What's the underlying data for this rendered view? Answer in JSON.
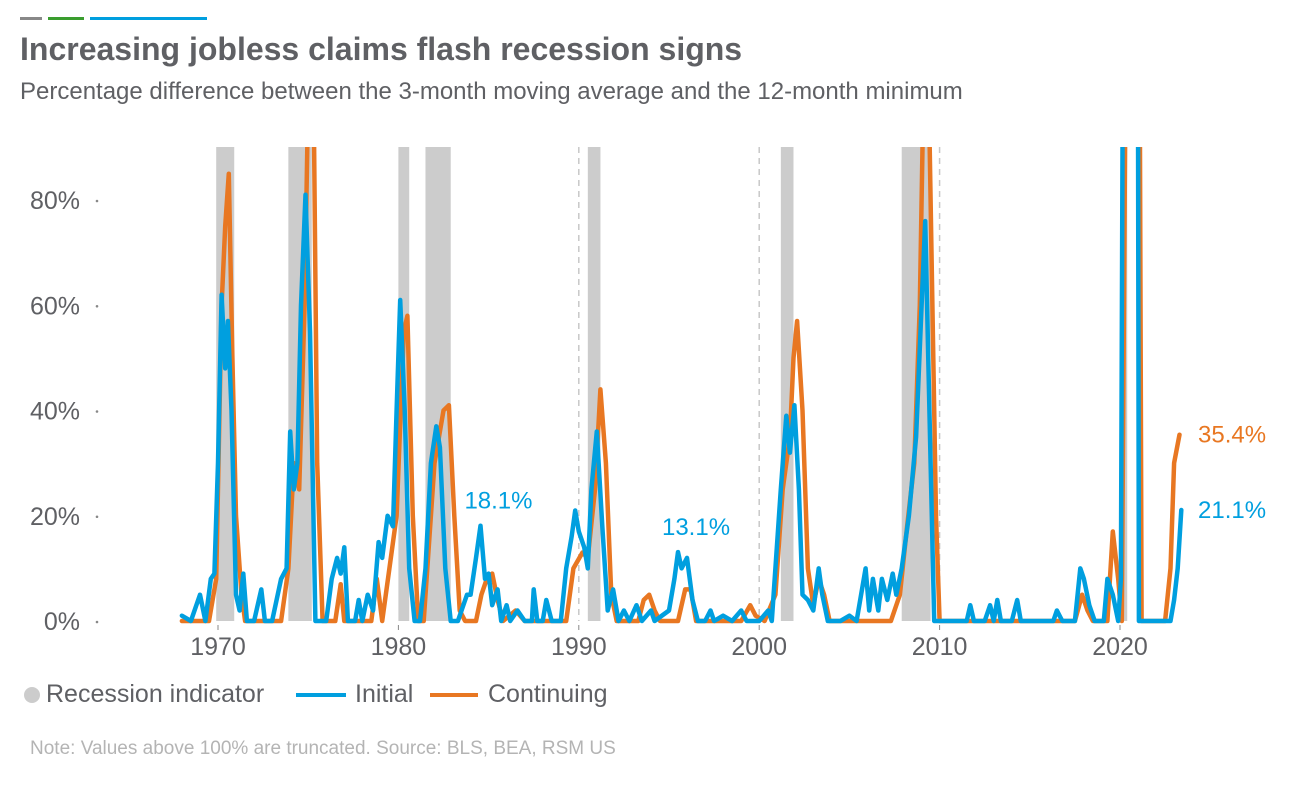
{
  "header": {
    "title": "Increasing jobless claims flash recession signs",
    "subtitle": "Percentage difference between the 3-month moving average and the 12-month minimum",
    "accent_bars": [
      "#888888",
      "#3a9d2f",
      "#009fdf"
    ]
  },
  "legend": {
    "recession": "Recession indicator",
    "initial": "Initial",
    "continuing": "Continuing"
  },
  "note": "Note: Values above 100% are truncated. Source: BLS, BEA, RSM US",
  "chart_data": {
    "type": "line",
    "xlabel": "",
    "ylabel": "",
    "x_ticks": [
      "1970",
      "1980",
      "1990",
      "2000",
      "2010",
      "2020"
    ],
    "y_ticks": [
      "0%",
      "20%",
      "40%",
      "60%",
      "80%"
    ],
    "xlim": [
      1968,
      2024
    ],
    "ylim": [
      0,
      90
    ],
    "grid": false,
    "legend_position": "bottom-left",
    "colors": {
      "recession": "#cccccc",
      "initial": "#009fdf",
      "continuing": "#e87722"
    },
    "recessions": [
      [
        1969.9,
        1970.9
      ],
      [
        1973.9,
        1975.2
      ],
      [
        1980.0,
        1980.6
      ],
      [
        1981.5,
        1982.9
      ],
      [
        1990.5,
        1991.2
      ],
      [
        2001.2,
        2001.9
      ],
      [
        2007.9,
        2009.5
      ],
      [
        2020.1,
        2020.4
      ]
    ],
    "series": [
      {
        "name": "Continuing",
        "points": [
          [
            1968,
            0
          ],
          [
            1969.5,
            0
          ],
          [
            1969.9,
            8
          ],
          [
            1970.2,
            60
          ],
          [
            1970.4,
            75
          ],
          [
            1970.6,
            85
          ],
          [
            1970.8,
            50
          ],
          [
            1971.0,
            20
          ],
          [
            1971.3,
            5
          ],
          [
            1971.5,
            0
          ],
          [
            1973.5,
            0
          ],
          [
            1973.9,
            10
          ],
          [
            1974.2,
            30
          ],
          [
            1974.5,
            25
          ],
          [
            1974.8,
            60
          ],
          [
            1975.0,
            100
          ],
          [
            1975.3,
            100
          ],
          [
            1975.5,
            30
          ],
          [
            1975.8,
            0
          ],
          [
            1976.5,
            0
          ],
          [
            1976.8,
            7
          ],
          [
            1977.0,
            0
          ],
          [
            1978.5,
            0
          ],
          [
            1978.8,
            8
          ],
          [
            1979.1,
            0
          ],
          [
            1979.5,
            10
          ],
          [
            1979.9,
            20
          ],
          [
            1980.3,
            55
          ],
          [
            1980.5,
            58
          ],
          [
            1980.8,
            20
          ],
          [
            1981.1,
            0
          ],
          [
            1981.4,
            0
          ],
          [
            1981.7,
            15
          ],
          [
            1982.0,
            30
          ],
          [
            1982.5,
            40
          ],
          [
            1982.8,
            41
          ],
          [
            1983.1,
            20
          ],
          [
            1983.4,
            2
          ],
          [
            1983.7,
            0
          ],
          [
            1984.3,
            0
          ],
          [
            1984.6,
            5
          ],
          [
            1984.9,
            8
          ],
          [
            1985.2,
            9
          ],
          [
            1985.5,
            4
          ],
          [
            1985.8,
            0
          ],
          [
            1986.5,
            2
          ],
          [
            1987,
            0
          ],
          [
            1989.3,
            0
          ],
          [
            1989.7,
            10
          ],
          [
            1990.2,
            13
          ],
          [
            1990.5,
            12
          ],
          [
            1990.9,
            25
          ],
          [
            1991.2,
            44
          ],
          [
            1991.5,
            30
          ],
          [
            1991.8,
            5
          ],
          [
            1992.1,
            0
          ],
          [
            1993.3,
            0
          ],
          [
            1993.6,
            4
          ],
          [
            1993.9,
            5
          ],
          [
            1994.2,
            2
          ],
          [
            1994.5,
            0
          ],
          [
            1995.5,
            0
          ],
          [
            1995.9,
            6
          ],
          [
            1996.2,
            6
          ],
          [
            1996.5,
            0
          ],
          [
            1999,
            0
          ],
          [
            1999.5,
            3
          ],
          [
            1999.8,
            1
          ],
          [
            2000.3,
            0
          ],
          [
            2000.9,
            5
          ],
          [
            2001.3,
            25
          ],
          [
            2001.7,
            35
          ],
          [
            2001.9,
            50
          ],
          [
            2002.1,
            57
          ],
          [
            2002.4,
            40
          ],
          [
            2002.7,
            10
          ],
          [
            2003.0,
            3
          ],
          [
            2003.3,
            8
          ],
          [
            2003.6,
            5
          ],
          [
            2003.9,
            0
          ],
          [
            2007.3,
            0
          ],
          [
            2007.8,
            5
          ],
          [
            2008.2,
            18
          ],
          [
            2008.6,
            30
          ],
          [
            2008.9,
            60
          ],
          [
            2009.1,
            100
          ],
          [
            2009.4,
            100
          ],
          [
            2009.8,
            20
          ],
          [
            2010.0,
            0
          ],
          [
            2017.5,
            0
          ],
          [
            2017.9,
            5
          ],
          [
            2018.2,
            2
          ],
          [
            2018.5,
            0
          ],
          [
            2019.3,
            0
          ],
          [
            2019.6,
            17
          ],
          [
            2019.9,
            8
          ],
          [
            2020.1,
            0
          ],
          [
            2020.3,
            100
          ],
          [
            2021.1,
            100
          ],
          [
            2021.2,
            0
          ],
          [
            2022.5,
            0
          ],
          [
            2022.8,
            10
          ],
          [
            2023.0,
            30
          ],
          [
            2023.3,
            35.4
          ]
        ]
      },
      {
        "name": "Initial",
        "points": [
          [
            1968.0,
            1
          ],
          [
            1968.5,
            0
          ],
          [
            1969.0,
            5
          ],
          [
            1969.3,
            0
          ],
          [
            1969.6,
            8
          ],
          [
            1969.8,
            9
          ],
          [
            1970.0,
            30
          ],
          [
            1970.2,
            62
          ],
          [
            1970.4,
            48
          ],
          [
            1970.55,
            57
          ],
          [
            1970.75,
            40
          ],
          [
            1971.0,
            5
          ],
          [
            1971.2,
            2
          ],
          [
            1971.4,
            9
          ],
          [
            1971.6,
            0
          ],
          [
            1972.0,
            0
          ],
          [
            1972.4,
            6
          ],
          [
            1972.6,
            0
          ],
          [
            1973.0,
            0
          ],
          [
            1973.5,
            8
          ],
          [
            1973.8,
            10
          ],
          [
            1974.0,
            36
          ],
          [
            1974.2,
            25
          ],
          [
            1974.4,
            30
          ],
          [
            1974.6,
            60
          ],
          [
            1974.85,
            81
          ],
          [
            1975.1,
            55
          ],
          [
            1975.4,
            0
          ],
          [
            1976.0,
            0
          ],
          [
            1976.3,
            8
          ],
          [
            1976.6,
            12
          ],
          [
            1976.8,
            9
          ],
          [
            1977.0,
            14
          ],
          [
            1977.2,
            0
          ],
          [
            1977.6,
            0
          ],
          [
            1977.8,
            4
          ],
          [
            1978.0,
            0
          ],
          [
            1978.3,
            5
          ],
          [
            1978.6,
            2
          ],
          [
            1978.9,
            15
          ],
          [
            1979.1,
            12
          ],
          [
            1979.4,
            20
          ],
          [
            1979.7,
            18
          ],
          [
            1979.9,
            40
          ],
          [
            1980.1,
            61
          ],
          [
            1980.35,
            40
          ],
          [
            1980.6,
            10
          ],
          [
            1980.9,
            0
          ],
          [
            1981.2,
            0
          ],
          [
            1981.5,
            10
          ],
          [
            1981.8,
            30
          ],
          [
            1982.1,
            37
          ],
          [
            1982.3,
            33
          ],
          [
            1982.6,
            10
          ],
          [
            1982.9,
            0
          ],
          [
            1983.3,
            0
          ],
          [
            1983.8,
            5
          ],
          [
            1984.0,
            5
          ],
          [
            1984.3,
            12
          ],
          [
            1984.55,
            18.1
          ],
          [
            1984.8,
            8
          ],
          [
            1985.0,
            9
          ],
          [
            1985.2,
            3
          ],
          [
            1985.5,
            6
          ],
          [
            1985.7,
            0
          ],
          [
            1986.0,
            3
          ],
          [
            1986.2,
            0
          ],
          [
            1986.6,
            2
          ],
          [
            1987.0,
            0
          ],
          [
            1987.4,
            0
          ],
          [
            1987.5,
            6
          ],
          [
            1987.7,
            0
          ],
          [
            1988.0,
            0
          ],
          [
            1988.2,
            4
          ],
          [
            1988.5,
            0
          ],
          [
            1989.0,
            0
          ],
          [
            1989.3,
            10
          ],
          [
            1989.6,
            16
          ],
          [
            1989.8,
            21
          ],
          [
            1990.0,
            17
          ],
          [
            1990.3,
            14
          ],
          [
            1990.5,
            10
          ],
          [
            1990.7,
            25
          ],
          [
            1991.0,
            36
          ],
          [
            1991.3,
            18
          ],
          [
            1991.6,
            2
          ],
          [
            1991.9,
            6
          ],
          [
            1992.2,
            0
          ],
          [
            1992.5,
            2
          ],
          [
            1992.8,
            0
          ],
          [
            1993.2,
            3
          ],
          [
            1993.5,
            0
          ],
          [
            1994.0,
            2
          ],
          [
            1994.2,
            0
          ],
          [
            1995.0,
            2
          ],
          [
            1995.3,
            8
          ],
          [
            1995.5,
            13.1
          ],
          [
            1995.7,
            10
          ],
          [
            1996.0,
            12
          ],
          [
            1996.3,
            4
          ],
          [
            1996.6,
            0
          ],
          [
            1997,
            0
          ],
          [
            1997.3,
            2
          ],
          [
            1997.5,
            0
          ],
          [
            1998,
            1
          ],
          [
            1998.5,
            0
          ],
          [
            1999,
            2
          ],
          [
            1999.3,
            0
          ],
          [
            2000,
            0
          ],
          [
            2000.5,
            2
          ],
          [
            2000.7,
            0
          ],
          [
            2000.9,
            10
          ],
          [
            2001.2,
            25
          ],
          [
            2001.5,
            39
          ],
          [
            2001.7,
            32
          ],
          [
            2001.95,
            41
          ],
          [
            2002.2,
            25
          ],
          [
            2002.4,
            5
          ],
          [
            2002.7,
            4
          ],
          [
            2003.0,
            2
          ],
          [
            2003.3,
            10
          ],
          [
            2003.5,
            5
          ],
          [
            2003.8,
            0
          ],
          [
            2004.5,
            0
          ],
          [
            2005,
            1
          ],
          [
            2005.4,
            0
          ],
          [
            2005.9,
            10
          ],
          [
            2006.1,
            2
          ],
          [
            2006.3,
            8
          ],
          [
            2006.6,
            2
          ],
          [
            2006.8,
            8
          ],
          [
            2007.1,
            4
          ],
          [
            2007.4,
            9
          ],
          [
            2007.6,
            5
          ],
          [
            2007.9,
            10
          ],
          [
            2008.3,
            20
          ],
          [
            2008.7,
            35
          ],
          [
            2009.0,
            60
          ],
          [
            2009.2,
            76
          ],
          [
            2009.5,
            30
          ],
          [
            2009.7,
            0
          ],
          [
            2011.5,
            0
          ],
          [
            2011.7,
            3
          ],
          [
            2011.9,
            0
          ],
          [
            2012.5,
            0
          ],
          [
            2012.8,
            3
          ],
          [
            2013.0,
            0
          ],
          [
            2013.2,
            4
          ],
          [
            2013.4,
            0
          ],
          [
            2014,
            0
          ],
          [
            2014.3,
            4
          ],
          [
            2014.5,
            0
          ],
          [
            2016.3,
            0
          ],
          [
            2016.5,
            2
          ],
          [
            2016.8,
            0
          ],
          [
            2017.5,
            0
          ],
          [
            2017.8,
            10
          ],
          [
            2018.0,
            8
          ],
          [
            2018.3,
            3
          ],
          [
            2018.6,
            0
          ],
          [
            2019.1,
            0
          ],
          [
            2019.3,
            8
          ],
          [
            2019.6,
            5
          ],
          [
            2019.9,
            0
          ],
          [
            2020.05,
            8
          ],
          [
            2020.15,
            100
          ],
          [
            2021.0,
            100
          ],
          [
            2021.05,
            0
          ],
          [
            2022.8,
            0
          ],
          [
            2023.0,
            4
          ],
          [
            2023.2,
            10
          ],
          [
            2023.4,
            21.1
          ]
        ]
      }
    ],
    "annotations": [
      {
        "text": "18.1%",
        "series": "Initial",
        "x": 1984.55,
        "y": 18.1
      },
      {
        "text": "13.1%",
        "series": "Initial",
        "x": 1995.5,
        "y": 13.1
      },
      {
        "text": "35.4%",
        "series": "Continuing",
        "x": 2023.3,
        "y": 35.4
      },
      {
        "text": "21.1%",
        "series": "Initial",
        "x": 2023.4,
        "y": 21.1
      }
    ]
  }
}
